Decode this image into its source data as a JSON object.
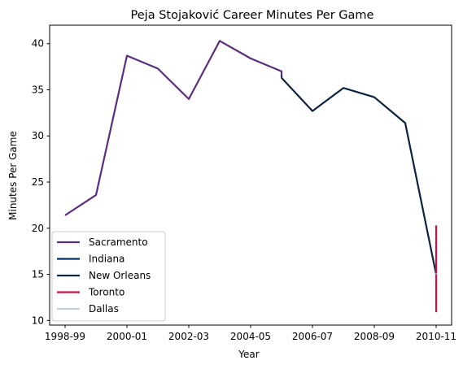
{
  "chart_data": {
    "type": "line",
    "title": "Peja Stojaković Career Minutes Per Game",
    "xlabel": "Year",
    "ylabel": "Minutes Per Game",
    "x_domain": [
      -0.5,
      12.5
    ],
    "ylim": [
      9.5,
      42
    ],
    "x_ticks": [
      {
        "pos": 0,
        "label": "1998-99"
      },
      {
        "pos": 2,
        "label": "2000-01"
      },
      {
        "pos": 4,
        "label": "2002-03"
      },
      {
        "pos": 6,
        "label": "2004-05"
      },
      {
        "pos": 8,
        "label": "2006-07"
      },
      {
        "pos": 10,
        "label": "2008-09"
      },
      {
        "pos": 12,
        "label": "2010-11"
      }
    ],
    "y_ticks": [
      10,
      15,
      20,
      25,
      30,
      35,
      40
    ],
    "legend_position": "lower-left",
    "series": [
      {
        "name": "Sacramento",
        "color": "#5a2d81",
        "points": [
          [
            0,
            21.4
          ],
          [
            1,
            23.6
          ],
          [
            2,
            38.7
          ],
          [
            3,
            37.3
          ],
          [
            4,
            34.0
          ],
          [
            5,
            40.3
          ],
          [
            6,
            38.4
          ],
          [
            7,
            37.0
          ],
          [
            7,
            36.5
          ]
        ]
      },
      {
        "name": "Indiana",
        "color": "#002d62",
        "points": [
          [
            7,
            36.5
          ],
          [
            7,
            36.3
          ]
        ]
      },
      {
        "name": "New Orleans",
        "color": "#0c2340",
        "points": [
          [
            7,
            36.3
          ],
          [
            8,
            32.7
          ],
          [
            9,
            35.2
          ],
          [
            10,
            34.2
          ],
          [
            11,
            31.4
          ],
          [
            12,
            15.0
          ]
        ]
      },
      {
        "name": "Toronto",
        "color": "#ce1141",
        "points": [
          [
            12,
            20.3
          ],
          [
            12,
            10.9
          ]
        ]
      },
      {
        "name": "Dallas",
        "color": "#c4ced4",
        "points": [
          [
            12,
            15.0
          ],
          [
            12,
            15.1
          ]
        ]
      }
    ]
  }
}
